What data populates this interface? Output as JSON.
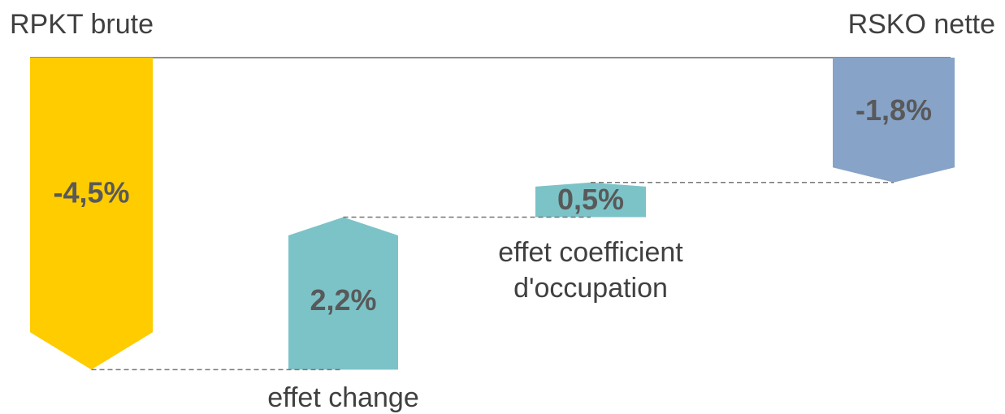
{
  "chart_data": {
    "type": "waterfall",
    "categories": [
      "RPKT brute",
      "effet change",
      "effet coefficient d'occupation",
      "RSKO nette"
    ],
    "values": [
      -4.5,
      2.2,
      0.5,
      -1.8
    ],
    "value_labels": [
      "-4,5%",
      "2,2%",
      "0,5%",
      "-1,8%"
    ],
    "colors": [
      "#ffcc00",
      "#7cc3c8",
      "#7cc3c8",
      "#87a3c8"
    ],
    "ylim": [
      -4.8,
      0
    ]
  }
}
